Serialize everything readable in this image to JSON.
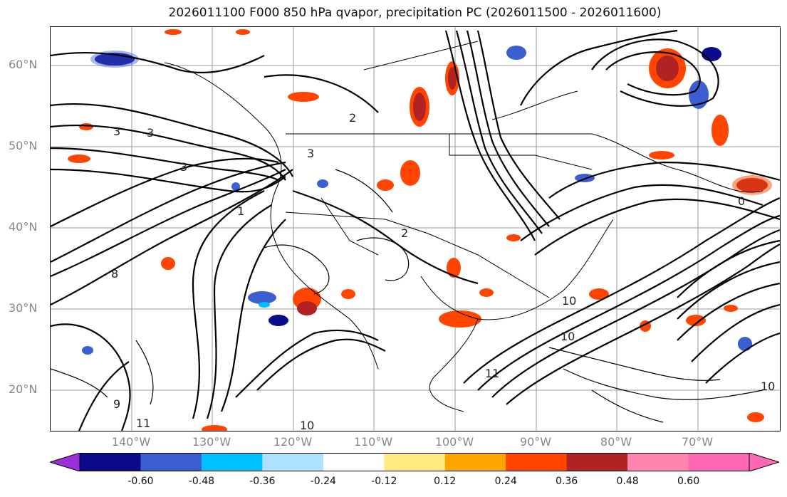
{
  "title": "2026011100 F000 850 hPa qvapor, precipitation PC (2026011500 - 2026011600)",
  "lat_labels": [
    "60°N",
    "50°N",
    "40°N",
    "30°N",
    "20°N"
  ],
  "lon_labels": [
    "140°W",
    "130°W",
    "120°W",
    "110°W",
    "100°W",
    "90°W",
    "80°W",
    "70°W"
  ],
  "colorbar": {
    "ticks": [
      "-0.60",
      "-0.48",
      "-0.36",
      "-0.24",
      "-0.12",
      "0.12",
      "0.24",
      "0.36",
      "0.48",
      "0.60"
    ],
    "colors": [
      "#9b30d9",
      "#0a0a8a",
      "#3b5fd0",
      "#00bfff",
      "#aee0ff",
      "#ffffff",
      "#ffeb80",
      "#ffa500",
      "#ff4500",
      "#b22222",
      "#ff85b0",
      "#ff69b4"
    ]
  },
  "contour_labels": [
    "3",
    "3",
    "3",
    "2",
    "3",
    "10",
    "10",
    "11",
    "10",
    "9",
    "11",
    "10",
    "0",
    "1",
    "2",
    "8"
  ],
  "map": {
    "projection": "lat-lon",
    "lat_range": [
      15,
      65
    ],
    "lon_range": [
      -150,
      -60
    ],
    "field": "850 hPa qvapor contours with precipitation PC shading"
  }
}
